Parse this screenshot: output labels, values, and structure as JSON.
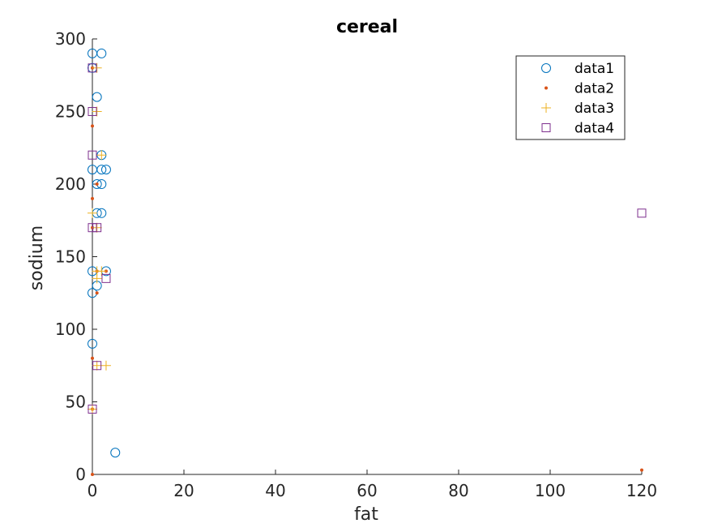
{
  "chart_data": {
    "type": "scatter",
    "title": "cereal",
    "xlabel": "fat",
    "ylabel": "sodium",
    "xlim": [
      0,
      120
    ],
    "ylim": [
      0,
      300
    ],
    "xticks": [
      0,
      20,
      40,
      60,
      80,
      100,
      120
    ],
    "yticks": [
      0,
      50,
      100,
      150,
      200,
      250,
      300
    ],
    "grid": false,
    "legend_position": "top-right",
    "series": [
      {
        "name": "data1",
        "marker": "circle",
        "color": "#0072BD",
        "points": [
          [
            0,
            290
          ],
          [
            2,
            290
          ],
          [
            0,
            280
          ],
          [
            1,
            260
          ],
          [
            2,
            220
          ],
          [
            0,
            210
          ],
          [
            2,
            210
          ],
          [
            3,
            210
          ],
          [
            1,
            200
          ],
          [
            2,
            200
          ],
          [
            1,
            180
          ],
          [
            2,
            180
          ],
          [
            0,
            140
          ],
          [
            3,
            140
          ],
          [
            1,
            130
          ],
          [
            0,
            125
          ],
          [
            0,
            90
          ],
          [
            5,
            15
          ]
        ]
      },
      {
        "name": "data2",
        "marker": "dot",
        "color": "#D95319",
        "points": [
          [
            0,
            280
          ],
          [
            0,
            240
          ],
          [
            1,
            200
          ],
          [
            0,
            190
          ],
          [
            0,
            170
          ],
          [
            1,
            140
          ],
          [
            3,
            140
          ],
          [
            1,
            125
          ],
          [
            0,
            80
          ],
          [
            0,
            45
          ],
          [
            0,
            0
          ],
          [
            120,
            3
          ]
        ]
      },
      {
        "name": "data3",
        "marker": "plus",
        "color": "#EDB120",
        "points": [
          [
            1,
            280
          ],
          [
            1,
            250
          ],
          [
            2,
            220
          ],
          [
            0,
            180
          ],
          [
            1,
            170
          ],
          [
            1,
            140
          ],
          [
            2,
            140
          ],
          [
            1,
            135
          ],
          [
            1,
            75
          ],
          [
            3,
            75
          ],
          [
            0,
            45
          ]
        ]
      },
      {
        "name": "data4",
        "marker": "square",
        "color": "#7E2F8E",
        "points": [
          [
            0,
            280
          ],
          [
            0,
            250
          ],
          [
            0,
            220
          ],
          [
            0,
            170
          ],
          [
            1,
            170
          ],
          [
            3,
            135
          ],
          [
            1,
            75
          ],
          [
            0,
            45
          ],
          [
            120,
            180
          ]
        ]
      }
    ]
  }
}
